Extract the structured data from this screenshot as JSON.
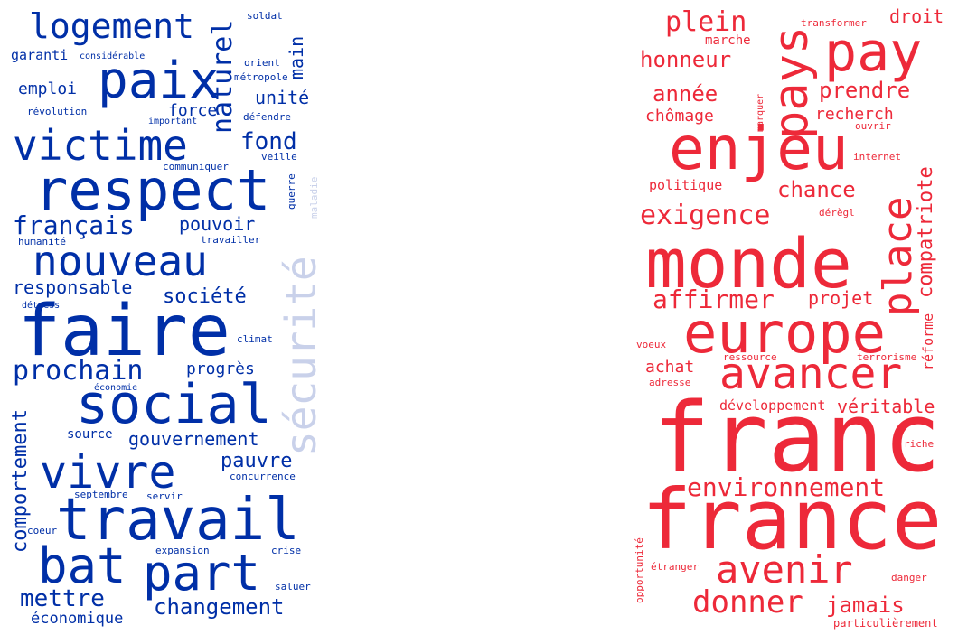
{
  "colors": {
    "blue": "#002fa7",
    "blue_faded": "#c9d1ea",
    "red": "#ed2939"
  },
  "left_cloud": {
    "words": [
      "logement",
      "paix",
      "naturel",
      "main",
      "soldat",
      "garanti",
      "considérable",
      "orient",
      "métropole",
      "emploi",
      "unité",
      "révolution",
      "important",
      "force",
      "défendre",
      "victime",
      "fond",
      "respect",
      "communiquer",
      "veille",
      "guerre",
      "maladie",
      "sécurité",
      "français",
      "pouvoir",
      "humanité",
      "travailler",
      "nouveau",
      "responsable",
      "société",
      "faire",
      "détress",
      "climat",
      "prochain",
      "progrès",
      "économie",
      "social",
      "source",
      "gouvernement",
      "comportement",
      "vivre",
      "pauvre",
      "concurrence",
      "septembre",
      "servir",
      "travail",
      "coeur",
      "expansion",
      "crise",
      "bat",
      "part",
      "saluer",
      "mettre",
      "changement",
      "économique"
    ]
  },
  "right_cloud": {
    "words": [
      "plein",
      "transformer",
      "droit",
      "pay",
      "pays",
      "marche",
      "honneur",
      "prendre",
      "année",
      "marquer",
      "chômage",
      "recherch",
      "ouvrir",
      "enjeu",
      "internet",
      "politique",
      "chance",
      "place",
      "dérègl",
      "exigence",
      "compatriote",
      "monde",
      "affirmer",
      "projet",
      "europe",
      "voeux",
      "ressource",
      "terrorisme",
      "réforme",
      "achat",
      "avancer",
      "adresse",
      "développement",
      "véritable",
      "franc",
      "riche",
      "environnement",
      "france",
      "opportunité",
      "avenir",
      "étranger",
      "danger",
      "donner",
      "jamais",
      "particulièrement"
    ]
  }
}
